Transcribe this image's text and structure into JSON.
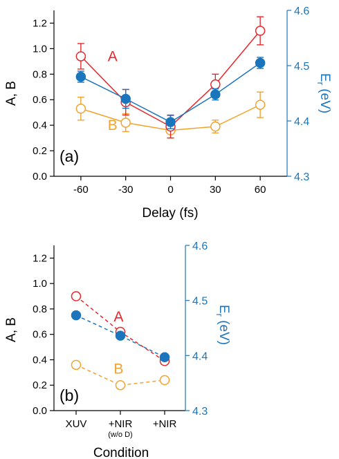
{
  "colors": {
    "A": "#e8262b",
    "B": "#f5a12a",
    "Er": "#1b75bc",
    "axis": "#000000"
  },
  "chart_data": [
    {
      "type": "line",
      "panel_label": "(a)",
      "xlabel": "Delay (fs)",
      "ylabel_left": "A, B",
      "ylabel_right": {
        "main": "E",
        "sub": "r",
        "unit": " (eV)"
      },
      "x": [
        -60,
        -30,
        0,
        30,
        60
      ],
      "x_ticks": [
        "-60",
        "-30",
        "0",
        "30",
        "60"
      ],
      "xlim": [
        -78,
        78
      ],
      "ylim_left": [
        0.0,
        1.3
      ],
      "yticks_left": [
        "0.0",
        "0.2",
        "0.4",
        "0.6",
        "0.8",
        "1.0",
        "1.2"
      ],
      "ylim_right": [
        4.3,
        4.6
      ],
      "yticks_right": [
        "4.3",
        "4.4",
        "4.5",
        "4.6"
      ],
      "series": [
        {
          "name": "A",
          "axis": "left",
          "marker": "open",
          "line": "solid",
          "values": [
            0.94,
            0.58,
            0.39,
            0.72,
            1.14
          ],
          "errors": [
            0.1,
            0.1,
            0.09,
            0.08,
            0.11
          ],
          "label_at": {
            "x": -42,
            "y": 0.94
          }
        },
        {
          "name": "B",
          "axis": "left",
          "marker": "open",
          "line": "solid",
          "values": [
            0.53,
            0.42,
            0.36,
            0.39,
            0.56
          ],
          "errors": [
            0.09,
            0.07,
            0.06,
            0.05,
            0.1
          ],
          "label_at": {
            "x": -42,
            "y": 0.4
          }
        },
        {
          "name": "",
          "axis": "right",
          "marker": "filled",
          "line": "solid",
          "values": [
            4.48,
            4.44,
            4.398,
            4.448,
            4.505
          ],
          "errors": [
            0.01,
            0.017,
            0.012,
            0.01,
            0.01
          ]
        }
      ]
    },
    {
      "type": "line",
      "panel_label": "(b)",
      "xlabel": "Condition",
      "ylabel_left": "A, B",
      "ylabel_right": {
        "main": "E",
        "sub": "r",
        "unit": " (eV)"
      },
      "categories": [
        "XUV",
        "+NIR",
        "+NIR"
      ],
      "category_sublabels": [
        "",
        "(w/o D)",
        ""
      ],
      "ylim_left": [
        0.0,
        1.3
      ],
      "yticks_left": [
        "0.0",
        "0.2",
        "0.4",
        "0.6",
        "0.8",
        "1.0",
        "1.2"
      ],
      "ylim_right": [
        4.3,
        4.6
      ],
      "yticks_right": [
        "4.3",
        "4.4",
        "4.5",
        "4.6"
      ],
      "series": [
        {
          "name": "A",
          "axis": "left",
          "marker": "open",
          "line": "dashed",
          "values": [
            0.9,
            0.62,
            0.39
          ],
          "label_at": {
            "x": 0.85,
            "y": 0.74
          }
        },
        {
          "name": "B",
          "axis": "left",
          "marker": "open",
          "line": "dashed",
          "values": [
            0.36,
            0.2,
            0.24
          ],
          "label_at": {
            "x": 0.85,
            "y": 0.33
          }
        },
        {
          "name": "",
          "axis": "right",
          "marker": "filled",
          "line": "dashed",
          "values": [
            4.473,
            4.436,
            4.397
          ]
        }
      ]
    }
  ]
}
